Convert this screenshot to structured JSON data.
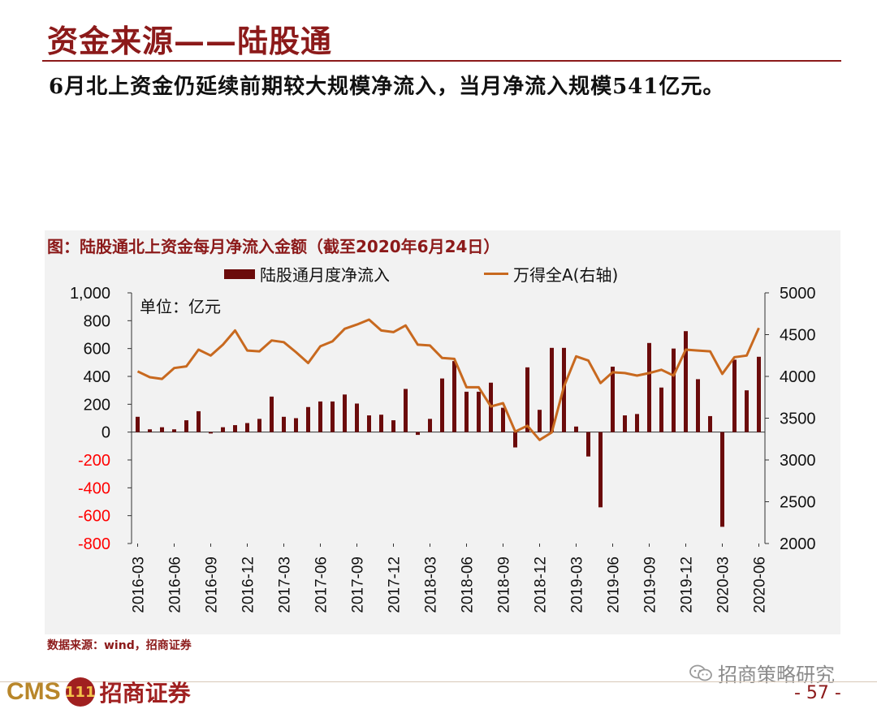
{
  "header": {
    "title": "资金来源——陆股通",
    "subtitle": "6月北上资金仍延续前期较大规模净流入，当月净流入规模541亿元。"
  },
  "chart_data": {
    "type": "bar+line",
    "title": "图：陆股通北上资金每月净流入金额（截至2020年6月24日）",
    "unit_label": "单位：亿元",
    "legend": [
      "陆股通月度净流入",
      "万得全A(右轴)"
    ],
    "colors": {
      "bar": "#6b0b0b",
      "line": "#c8691f",
      "negative_tick": "#ff0000",
      "title": "#8c1a1a"
    },
    "categories": [
      "2016-03",
      "2016-04",
      "2016-05",
      "2016-06",
      "2016-07",
      "2016-08",
      "2016-09",
      "2016-10",
      "2016-11",
      "2016-12",
      "2017-01",
      "2017-02",
      "2017-03",
      "2017-04",
      "2017-05",
      "2017-06",
      "2017-07",
      "2017-08",
      "2017-09",
      "2017-10",
      "2017-11",
      "2017-12",
      "2018-01",
      "2018-02",
      "2018-03",
      "2018-04",
      "2018-05",
      "2018-06",
      "2018-07",
      "2018-08",
      "2018-09",
      "2018-10",
      "2018-11",
      "2018-12",
      "2019-01",
      "2019-02",
      "2019-03",
      "2019-04",
      "2019-05",
      "2019-06",
      "2019-07",
      "2019-08",
      "2019-09",
      "2019-10",
      "2019-11",
      "2019-12",
      "2020-01",
      "2020-02",
      "2020-03",
      "2020-04",
      "2020-05",
      "2020-06"
    ],
    "x_tick_labels": [
      "2016-03",
      "2016-06",
      "2016-09",
      "2016-12",
      "2017-03",
      "2017-06",
      "2017-09",
      "2017-12",
      "2018-03",
      "2018-06",
      "2018-09",
      "2018-12",
      "2019-03",
      "2019-06",
      "2019-09",
      "2019-12",
      "2020-03",
      "2020-06"
    ],
    "series": [
      {
        "name": "陆股通月度净流入",
        "axis": "left",
        "values": [
          110,
          20,
          35,
          20,
          85,
          150,
          -10,
          35,
          50,
          65,
          95,
          255,
          110,
          100,
          180,
          220,
          220,
          270,
          205,
          120,
          125,
          85,
          310,
          -20,
          95,
          385,
          510,
          290,
          290,
          355,
          175,
          -110,
          465,
          160,
          605,
          605,
          40,
          -175,
          -540,
          470,
          120,
          130,
          640,
          320,
          600,
          725,
          380,
          115,
          -680,
          520,
          300,
          541
        ]
      },
      {
        "name": "万得全A(右轴)",
        "axis": "right",
        "values": [
          4060,
          3990,
          3970,
          4100,
          4120,
          4320,
          4250,
          4380,
          4550,
          4310,
          4300,
          4430,
          4410,
          4290,
          4160,
          4360,
          4420,
          4570,
          4620,
          4680,
          4550,
          4530,
          4610,
          4380,
          4370,
          4220,
          4210,
          3870,
          3870,
          3640,
          3680,
          3340,
          3410,
          3240,
          3330,
          3880,
          4240,
          4190,
          3920,
          4050,
          4040,
          4010,
          4040,
          4080,
          4010,
          4320,
          4310,
          4300,
          4030,
          4230,
          4250,
          4580
        ]
      }
    ],
    "left_axis": {
      "min": -800,
      "max": 1000,
      "ticks": [
        "1,000",
        "800",
        "600",
        "400",
        "200",
        "0",
        "-200",
        "-400",
        "-600",
        "-800"
      ]
    },
    "right_axis": {
      "min": 2000,
      "max": 5000,
      "ticks": [
        "5000",
        "4500",
        "4000",
        "3500",
        "3000",
        "2500",
        "2000"
      ]
    }
  },
  "footer": {
    "source": "数据来源：wind，招商证券",
    "logo_text": "CMS",
    "logo_badge": "111",
    "logo_cn": "招商证券",
    "wechat_text": "招商策略研究",
    "page_number": "- 57 -"
  }
}
